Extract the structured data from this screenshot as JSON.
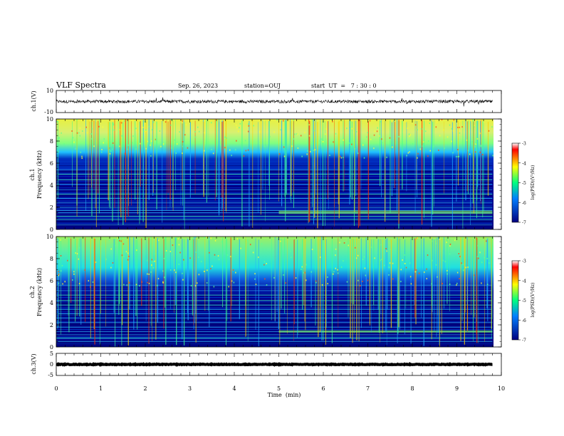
{
  "header": {
    "title": "VLF Spectra",
    "date": "Sep. 26, 2023",
    "station": "station=OUJ",
    "start": "start  UT  =   7 : 30 : 0"
  },
  "chart_data": [
    {
      "type": "line",
      "ylabel": "ch.1(V)",
      "ylim": [
        -10,
        10
      ],
      "yticks": [
        "10",
        "-10"
      ],
      "xlim": [
        0,
        10
      ],
      "trace": {
        "center": 0,
        "amplitude": 2,
        "color": "#000000"
      }
    },
    {
      "type": "heatmap",
      "ylabel": "ch.1\nFrequency (kHz)",
      "ylabel_lines": [
        "ch.1",
        "Frequency (kHz)"
      ],
      "ylim": [
        0,
        10
      ],
      "yticks": [
        "0",
        "2",
        "4",
        "6",
        "8",
        "10"
      ],
      "xlim": [
        0,
        9.8
      ],
      "colorbar": {
        "label": "log(PSD)(V²/Hz)",
        "range": [
          -7,
          -3
        ],
        "ticks": [
          "-3",
          "-4",
          "-5",
          "-6",
          "-7"
        ]
      },
      "noise_floor_khz": 6.5,
      "horizontal_lines_khz": [
        0.4,
        0.9,
        1.2,
        1.5,
        1.7,
        2.0,
        2.4,
        2.8,
        3.2,
        3.6,
        4.1,
        4.5,
        5.0,
        5.4
      ],
      "strong_band_khz": [
        1.4,
        1.7
      ]
    },
    {
      "type": "heatmap",
      "ylabel": "ch.2\nFrequency (kHz)",
      "ylabel_lines": [
        "ch.2",
        "Frequency (kHz)"
      ],
      "ylim": [
        0,
        10
      ],
      "yticks": [
        "0",
        "2",
        "4",
        "6",
        "8",
        "10"
      ],
      "xlim": [
        0,
        9.8
      ],
      "colorbar": {
        "label": "log(PSD)(V²/Hz)",
        "range": [
          -7,
          -3
        ],
        "ticks": [
          "-3",
          "-4",
          "-5",
          "-6",
          "-7"
        ]
      },
      "noise_floor_khz": 5.5,
      "horizontal_lines_khz": [
        0.5,
        0.8,
        1.1,
        1.4,
        1.8,
        2.2,
        2.6,
        3.0,
        3.4,
        3.8,
        4.2,
        4.7,
        5.1,
        5.6
      ],
      "strong_band_khz": [
        1.3,
        1.5
      ]
    },
    {
      "type": "line",
      "ylabel": "ch.3(V)",
      "ylim": [
        -5,
        5
      ],
      "yticks": [
        "5",
        "0",
        "-5"
      ],
      "xlim": [
        0,
        10
      ],
      "trace": {
        "center": 0,
        "amplitude": 0.3,
        "color": "#000000"
      },
      "xlabel": "Time  (min)",
      "xticks": [
        "0",
        "1",
        "2",
        "3",
        "4",
        "5",
        "6",
        "7",
        "8",
        "9",
        "10"
      ]
    }
  ],
  "colors": {
    "jet": [
      "#00007f",
      "#0000ff",
      "#007fff",
      "#00ffff",
      "#7fff7f",
      "#ffff00",
      "#ff7f00",
      "#ff0000",
      "#7f0000"
    ]
  }
}
